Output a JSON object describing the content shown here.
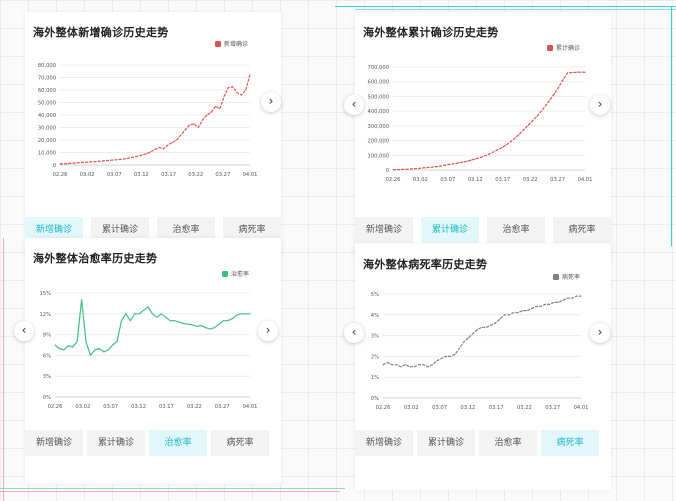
{
  "tabs": [
    "新增确诊",
    "累计确诊",
    "治愈率",
    "病死率"
  ],
  "nav_icons": {
    "prev": "chevron-left-icon",
    "next": "chevron-right-icon"
  },
  "panels": [
    {
      "key": "new",
      "color": "#d9534f",
      "active_tab": 0
    },
    {
      "key": "total",
      "color": "#d9534f",
      "active_tab": 1
    },
    {
      "key": "cure",
      "color": "#3fbf7f",
      "active_tab": 2
    },
    {
      "key": "death",
      "color": "#7f7f7f",
      "active_tab": 3
    }
  ],
  "chart_data": [
    {
      "type": "line",
      "title": "海外整体新增确诊历史走势",
      "series": [
        {
          "name": "新增确诊",
          "values": [
            800,
            1000,
            1200,
            1500,
            1700,
            2000,
            2200,
            2500,
            2700,
            3000,
            3300,
            3600,
            3900,
            4200,
            4500,
            5000,
            5600,
            6300,
            7000,
            8000,
            9000,
            10500,
            12500,
            14000,
            13000,
            16000,
            18000,
            20000,
            24000,
            28000,
            32000,
            33000,
            30000,
            36000,
            40000,
            42000,
            47000,
            45000,
            55000,
            62000,
            62500,
            58000,
            56000,
            60000,
            72000
          ]
        }
      ],
      "xticks": [
        "02.26",
        "03.02",
        "03.07",
        "03.12",
        "03.17",
        "03.22",
        "03.27",
        "04.01"
      ],
      "yticks": [
        "0",
        "10,000",
        "20,000",
        "30,000",
        "40,000",
        "50,000",
        "60,000",
        "70,000",
        "80,000"
      ],
      "ylim": [
        0,
        80000
      ]
    },
    {
      "type": "line",
      "title": "海外整体累计确诊历史走势",
      "series": [
        {
          "name": "累计确诊",
          "values": [
            2000,
            3000,
            4000,
            5000,
            7000,
            9000,
            11000,
            14000,
            17000,
            20000,
            24000,
            28000,
            33000,
            38000,
            43000,
            48000,
            54000,
            60000,
            68000,
            76000,
            85000,
            95000,
            108000,
            122000,
            137000,
            153000,
            172000,
            193000,
            218000,
            245000,
            275000,
            305000,
            335000,
            365000,
            400000,
            438000,
            478000,
            520000,
            565000,
            615000,
            660000,
            662000,
            664000,
            665000,
            665000
          ]
        }
      ],
      "xticks": [
        "02.26",
        "03.02",
        "03.07",
        "03.12",
        "03.17",
        "03.22",
        "03.27",
        "04.01"
      ],
      "yticks": [
        "0",
        "100,000",
        "200,000",
        "300,000",
        "400,000",
        "500,000",
        "600,000",
        "700,000"
      ],
      "ylim": [
        0,
        700000
      ]
    },
    {
      "type": "line",
      "title": "海外整体治愈率历史走势",
      "series": [
        {
          "name": "治愈率",
          "values": [
            7.5,
            7.0,
            6.8,
            7.4,
            7.2,
            8.0,
            14.0,
            8.0,
            6.0,
            6.8,
            7.0,
            6.5,
            6.8,
            7.5,
            8.0,
            11.0,
            12.0,
            11.0,
            12.0,
            12.0,
            12.5,
            13.0,
            12.0,
            11.5,
            12.0,
            11.5,
            11.0,
            11.0,
            10.8,
            10.6,
            10.5,
            10.4,
            10.2,
            10.3,
            10.0,
            9.8,
            10.0,
            10.5,
            11.0,
            11.0,
            11.3,
            11.8,
            12.0,
            12.0,
            12.0
          ]
        }
      ],
      "xticks": [
        "02.26",
        "03.02",
        "03.07",
        "03.12",
        "03.17",
        "03.22",
        "03.27",
        "04.01"
      ],
      "yticks": [
        "0%",
        "3%",
        "6%",
        "9%",
        "12%",
        "15%"
      ],
      "ylim": [
        0,
        15
      ]
    },
    {
      "type": "line",
      "title": "海外整体病死率历史走势",
      "series": [
        {
          "name": "病死率",
          "values": [
            1.6,
            1.7,
            1.6,
            1.6,
            1.5,
            1.6,
            1.5,
            1.5,
            1.6,
            1.6,
            1.5,
            1.6,
            1.8,
            1.9,
            2.0,
            2.0,
            2.1,
            2.4,
            2.7,
            2.9,
            3.1,
            3.3,
            3.4,
            3.4,
            3.5,
            3.6,
            3.8,
            4.0,
            4.0,
            4.1,
            4.1,
            4.2,
            4.2,
            4.3,
            4.4,
            4.4,
            4.5,
            4.5,
            4.6,
            4.6,
            4.7,
            4.8,
            4.8,
            4.9,
            4.9
          ]
        }
      ],
      "xticks": [
        "02.26",
        "03.02",
        "03.07",
        "03.12",
        "03.17",
        "03.22",
        "03.27",
        "04.01"
      ],
      "yticks": [
        "0%",
        "1%",
        "2%",
        "3%",
        "4%",
        "5%"
      ],
      "ylim": [
        0,
        5
      ]
    }
  ]
}
